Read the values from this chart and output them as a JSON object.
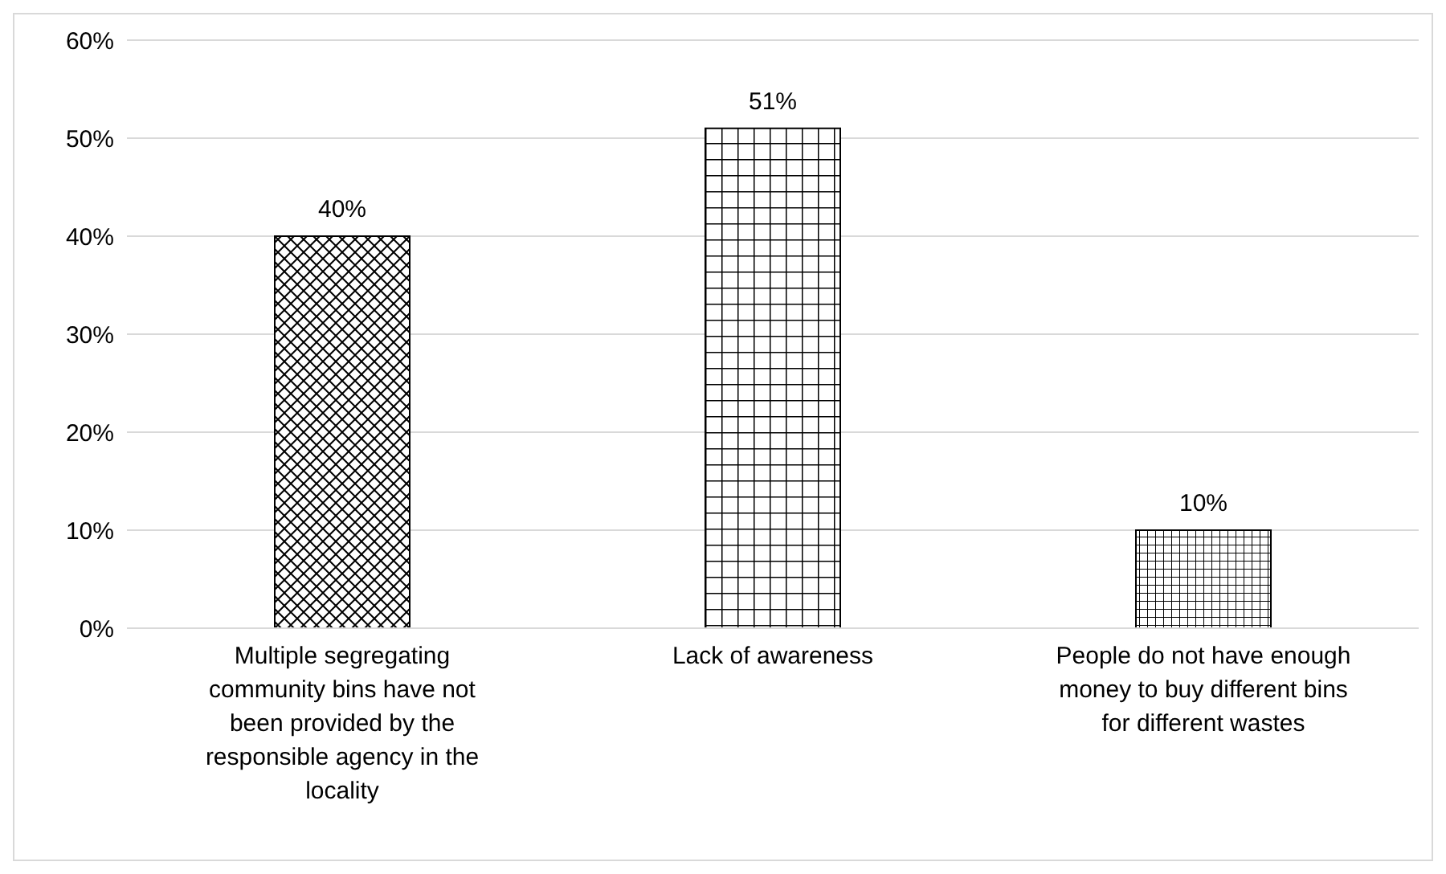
{
  "chart_data": {
    "type": "bar",
    "categories": [
      "Multiple segregating community bins have not been provided by the responsible agency in the locality",
      "Lack of awareness",
      "People do not have enough money to buy different bins for different wastes"
    ],
    "values": [
      40,
      51,
      10
    ],
    "colors": [
      "#000000",
      "#000000",
      "#000000"
    ],
    "value_labels": [
      "40%",
      "51%",
      "10%"
    ],
    "ylim": [
      0,
      60
    ],
    "yticks": [
      {
        "value": 0,
        "label": "0%"
      },
      {
        "value": 10,
        "label": "10%"
      },
      {
        "value": 20,
        "label": "20%"
      },
      {
        "value": 30,
        "label": "30%"
      },
      {
        "value": 40,
        "label": "40%"
      },
      {
        "value": 50,
        "label": "50%"
      },
      {
        "value": 60,
        "label": "60%"
      }
    ],
    "grid": "y",
    "legend": false
  }
}
